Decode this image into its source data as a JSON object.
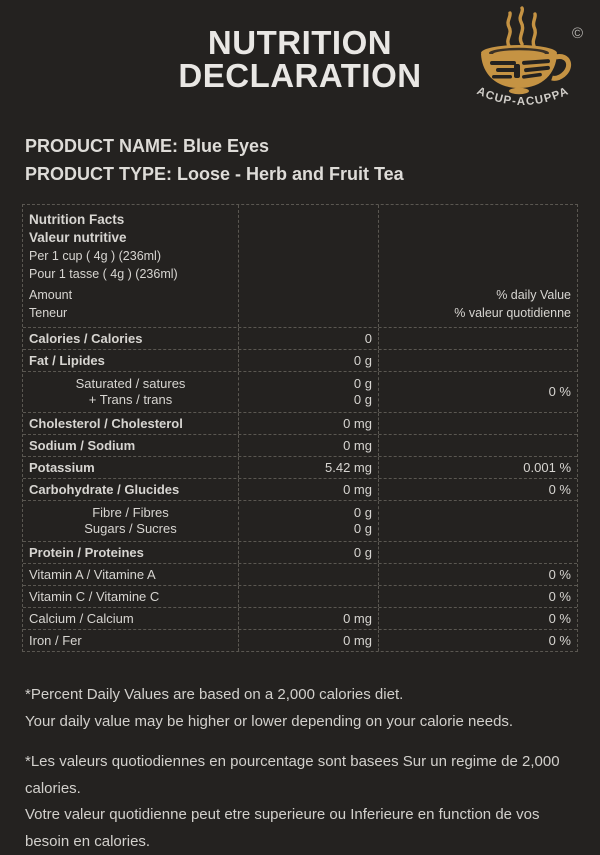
{
  "page": {
    "background_color": "#242220",
    "text_color": "#d5d3cf",
    "accent_gold": "#c59343",
    "border_color": "#5a5751"
  },
  "header": {
    "title_line1": "NUTRITION",
    "title_line2": "DECLARATION",
    "logo": {
      "brand_text": "ACUP-ACUPPA",
      "copyright": "©"
    }
  },
  "product": {
    "name_line": "PRODUCT NAME: Blue Eyes",
    "type_line": "PRODUCT TYPE: Loose - Herb and Fruit Tea"
  },
  "nutrition_table": {
    "header": {
      "title_en": "Nutrition Facts",
      "title_fr": "Valeur nutritive",
      "serving_en": "Per 1 cup ( 4g ) (236ml)",
      "serving_fr": "Pour 1 tasse ( 4g ) (236ml)",
      "amount_en": "Amount",
      "amount_fr": "Teneur",
      "dv_en": "% daily Value",
      "dv_fr": "% valeur quotidienne"
    },
    "rows": [
      {
        "labels": [
          "Calories / Calories"
        ],
        "bold": true,
        "center": false,
        "amounts": [
          "0"
        ],
        "dv": ""
      },
      {
        "labels": [
          "Fat / Lipides"
        ],
        "bold": true,
        "center": false,
        "amounts": [
          "0 g"
        ],
        "dv": ""
      },
      {
        "labels": [
          "Saturated / satures",
          "+ Trans / trans"
        ],
        "bold": false,
        "center": true,
        "amounts": [
          "0 g",
          "0 g"
        ],
        "dv": "0 %"
      },
      {
        "labels": [
          "Cholesterol / Cholesterol"
        ],
        "bold": true,
        "center": false,
        "amounts": [
          "0 mg"
        ],
        "dv": ""
      },
      {
        "labels": [
          "Sodium / Sodium"
        ],
        "bold": true,
        "center": false,
        "amounts": [
          "0 mg"
        ],
        "dv": ""
      },
      {
        "labels": [
          "Potassium"
        ],
        "bold": true,
        "center": false,
        "amounts": [
          "5.42 mg"
        ],
        "dv": "0.001 %"
      },
      {
        "labels": [
          "Carbohydrate / Glucides"
        ],
        "bold": true,
        "center": false,
        "amounts": [
          "0 mg"
        ],
        "dv": "0 %"
      },
      {
        "labels": [
          "Fibre / Fibres",
          "Sugars / Sucres"
        ],
        "bold": false,
        "center": true,
        "amounts": [
          "0 g",
          "0 g"
        ],
        "dv": ""
      },
      {
        "labels": [
          "Protein / Proteines"
        ],
        "bold": true,
        "center": false,
        "amounts": [
          "0 g"
        ],
        "dv": ""
      },
      {
        "labels": [
          "Vitamin A / Vitamine A"
        ],
        "bold": false,
        "center": false,
        "amounts": [],
        "dv": "0 %"
      },
      {
        "labels": [
          "Vitamin C / Vitamine C"
        ],
        "bold": false,
        "center": false,
        "amounts": [],
        "dv": "0 %"
      },
      {
        "labels": [
          "Calcium / Calcium"
        ],
        "bold": false,
        "center": false,
        "amounts": [
          "0 mg"
        ],
        "dv": "0 %"
      },
      {
        "labels": [
          "Iron / Fer"
        ],
        "bold": false,
        "center": false,
        "amounts": [
          "0 mg"
        ],
        "dv": "0 %"
      }
    ]
  },
  "footer": {
    "en_lines": [
      "*Percent Daily Values are based on a 2,000 calories diet.",
      "Your daily value may be higher or lower depending on your calorie needs."
    ],
    "fr_lines": [
      "*Les valeurs quotiodiennes en pourcentage sont basees Sur un regime de 2,000",
      "calories.",
      "Votre valeur quotidienne peut etre superieure ou Inferieure en function de vos",
      "besoin en calories."
    ]
  }
}
